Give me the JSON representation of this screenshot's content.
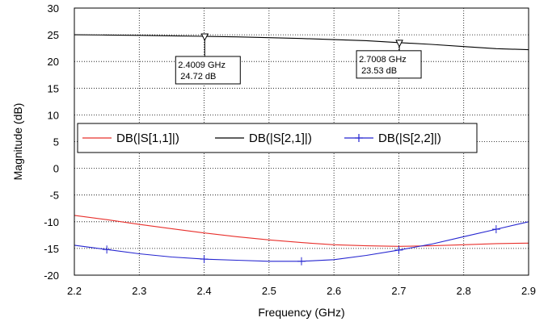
{
  "chart_data": {
    "type": "line",
    "xlabel": "Frequency (GHz)",
    "ylabel": "Magnitude (dB)",
    "xlim": [
      2.2,
      2.9
    ],
    "ylim": [
      -20,
      30
    ],
    "x_ticks": [
      "2.2",
      "2.3",
      "2.4",
      "2.5",
      "2.6",
      "2.7",
      "2.8",
      "2.9"
    ],
    "y_ticks": [
      "-20",
      "-15",
      "-10",
      "-5",
      "0",
      "5",
      "10",
      "15",
      "20",
      "25",
      "30"
    ],
    "grid": true,
    "legend_position": "center-left",
    "series": [
      {
        "name": "DB(|S[1,1]|)",
        "color": "#e8302c",
        "marker": "none",
        "x": [
          2.2,
          2.25,
          2.3,
          2.35,
          2.4,
          2.45,
          2.5,
          2.55,
          2.6,
          2.65,
          2.7,
          2.75,
          2.8,
          2.85,
          2.9
        ],
        "y": [
          -8.8,
          -9.6,
          -10.5,
          -11.3,
          -12.1,
          -12.8,
          -13.4,
          -13.9,
          -14.3,
          -14.5,
          -14.6,
          -14.5,
          -14.3,
          -14.1,
          -14.0
        ]
      },
      {
        "name": "DB(|S[2,1]|)",
        "color": "#000000",
        "marker": "none",
        "x": [
          2.2,
          2.25,
          2.3,
          2.35,
          2.4,
          2.45,
          2.5,
          2.55,
          2.6,
          2.65,
          2.7,
          2.75,
          2.8,
          2.85,
          2.9
        ],
        "y": [
          25.0,
          24.95,
          24.9,
          24.8,
          24.72,
          24.6,
          24.45,
          24.3,
          24.1,
          23.9,
          23.53,
          23.2,
          22.8,
          22.4,
          22.2
        ]
      },
      {
        "name": "DB(|S[2,2]|)",
        "color": "#2525d0",
        "marker": "plus",
        "x": [
          2.2,
          2.25,
          2.3,
          2.35,
          2.4,
          2.45,
          2.5,
          2.55,
          2.6,
          2.65,
          2.7,
          2.75,
          2.8,
          2.85,
          2.9
        ],
        "y": [
          -14.4,
          -15.2,
          -16.0,
          -16.6,
          -17.0,
          -17.2,
          -17.4,
          -17.4,
          -17.1,
          -16.3,
          -15.3,
          -14.2,
          -12.8,
          -11.4,
          -10.0
        ],
        "marker_x": [
          2.25,
          2.4,
          2.55,
          2.7,
          2.85
        ]
      }
    ],
    "annotations": [
      {
        "series": 1,
        "x": 2.4009,
        "y": 24.72,
        "freq_label": "2.4009 GHz",
        "value_label": "24.72 dB"
      },
      {
        "series": 1,
        "x": 2.7008,
        "y": 23.53,
        "freq_label": "2.7008 GHz",
        "value_label": "23.53 dB"
      }
    ]
  }
}
